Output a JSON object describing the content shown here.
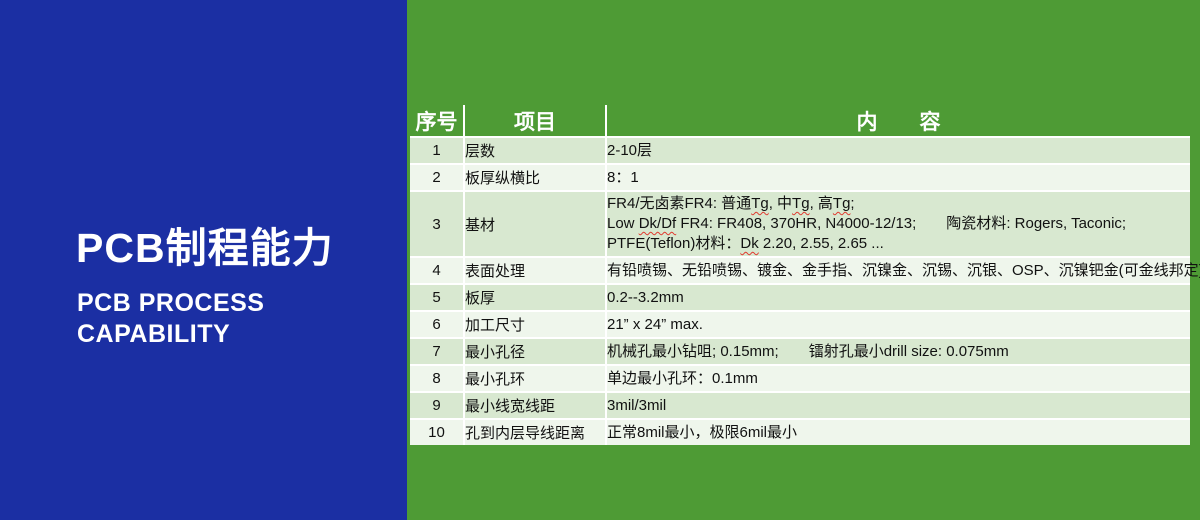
{
  "left_panel": {
    "title": "PCB制程能力",
    "subtitle_line1": "PCB PROCESS",
    "subtitle_line2": "CAPABILITY"
  },
  "table": {
    "headers": [
      "序号",
      "项目",
      "内　　容"
    ],
    "rows": [
      {
        "no": "1",
        "item": "层数",
        "content": [
          "2-10层"
        ]
      },
      {
        "no": "2",
        "item": "板厚纵横比",
        "content": [
          "8：1"
        ]
      },
      {
        "no": "3",
        "item": "基材",
        "content": [
          "FR4/无卤素FR4:  普通Tg, 中Tg, 高Tg;",
          "Low Dk/Df FR4:  FR408, 370HR, N4000-12/13;　　陶瓷材料: Rogers, Taconic;",
          "PTFE(Teflon)材料：Dk 2.20, 2.55, 2.65 ..."
        ]
      },
      {
        "no": "4",
        "item": "表面处理",
        "content": [
          "有铅喷锡、无铅喷锡、镀金、金手指、沉镍金、沉锡、沉银、OSP、沉镍钯金(可金线邦定)"
        ]
      },
      {
        "no": "5",
        "item": "板厚",
        "content": [
          "0.2--3.2mm"
        ]
      },
      {
        "no": "6",
        "item": "加工尺寸",
        "content": [
          "21” x 24”  max."
        ]
      },
      {
        "no": "7",
        "item": "最小孔径",
        "content": [
          "机械孔最小钻咀; 0.15mm;　　镭射孔最小drill size: 0.075mm"
        ]
      },
      {
        "no": "8",
        "item": "最小孔环",
        "content": [
          "单边最小孔环：0.1mm"
        ]
      },
      {
        "no": "9",
        "item": "最小线宽线距",
        "content": [
          "3mil/3mil"
        ]
      },
      {
        "no": "10",
        "item": "孔到内层导线距离",
        "content": [
          "正常8mil最小，极限6mil最小"
        ]
      }
    ],
    "misspelled_tokens": [
      "Dk/Df",
      "Dk",
      "Tg"
    ]
  },
  "colors": {
    "panel_blue": "#1b2fa3",
    "panel_green": "#4e9b35",
    "row_odd": "#d8e8d0",
    "row_even": "#eff6ec",
    "grid_white": "#ffffff",
    "squiggle_red": "#e03a2f"
  }
}
